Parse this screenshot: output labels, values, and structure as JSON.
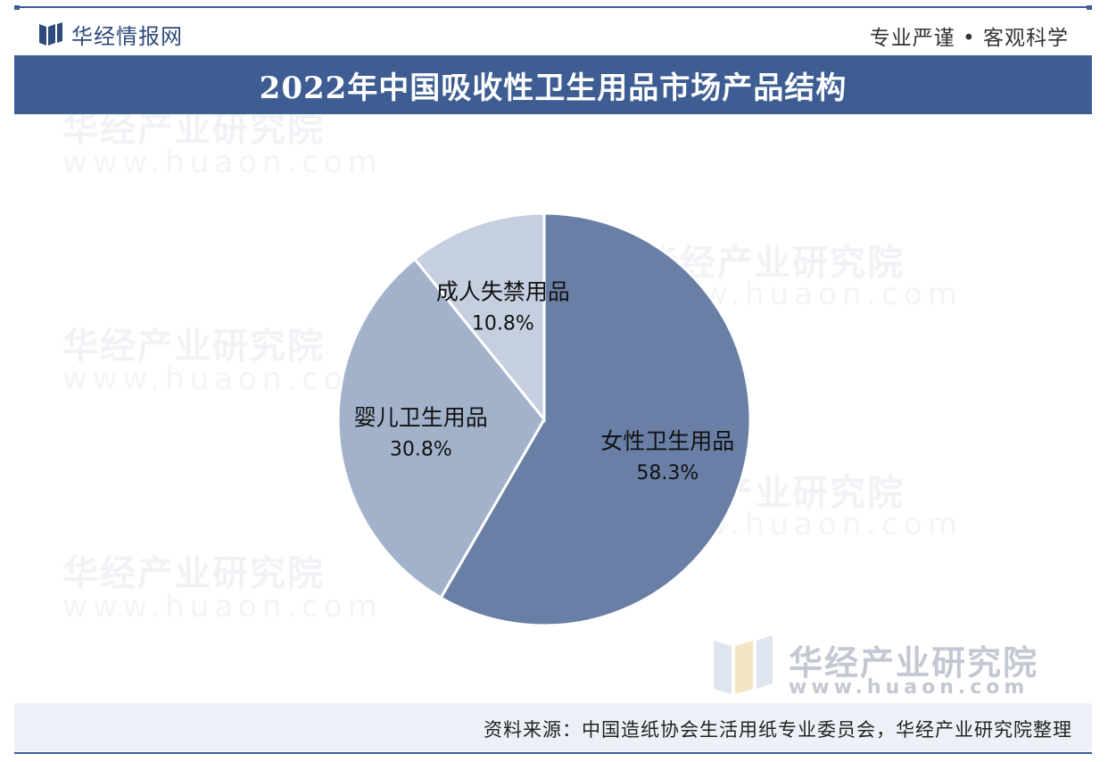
{
  "header": {
    "brand_name": "华经情报网",
    "slogan": "专业严谨 • 客观科学"
  },
  "watermark": {
    "cn": "华经产业研究院",
    "en": "www.huaon.com"
  },
  "footer": {
    "source": "资料来源：中国造纸协会生活用纸专业委员会，华经产业研究院整理"
  },
  "colors": {
    "brand": "#3d5d93",
    "slice_1": "#6a7fa6",
    "slice_2": "#a3b2cb",
    "slice_3": "#c5cfe0"
  },
  "chart_data": {
    "type": "pie",
    "title": "2022年中国吸收性卫生用品市场产品结构",
    "categories": [
      "女性卫生用品",
      "婴儿卫生用品",
      "成人失禁用品"
    ],
    "values": [
      58.3,
      30.8,
      10.8
    ],
    "labels": [
      "58.3%",
      "30.8%",
      "10.8%"
    ],
    "start": "12 o'clock, clockwise",
    "legend": "none"
  }
}
